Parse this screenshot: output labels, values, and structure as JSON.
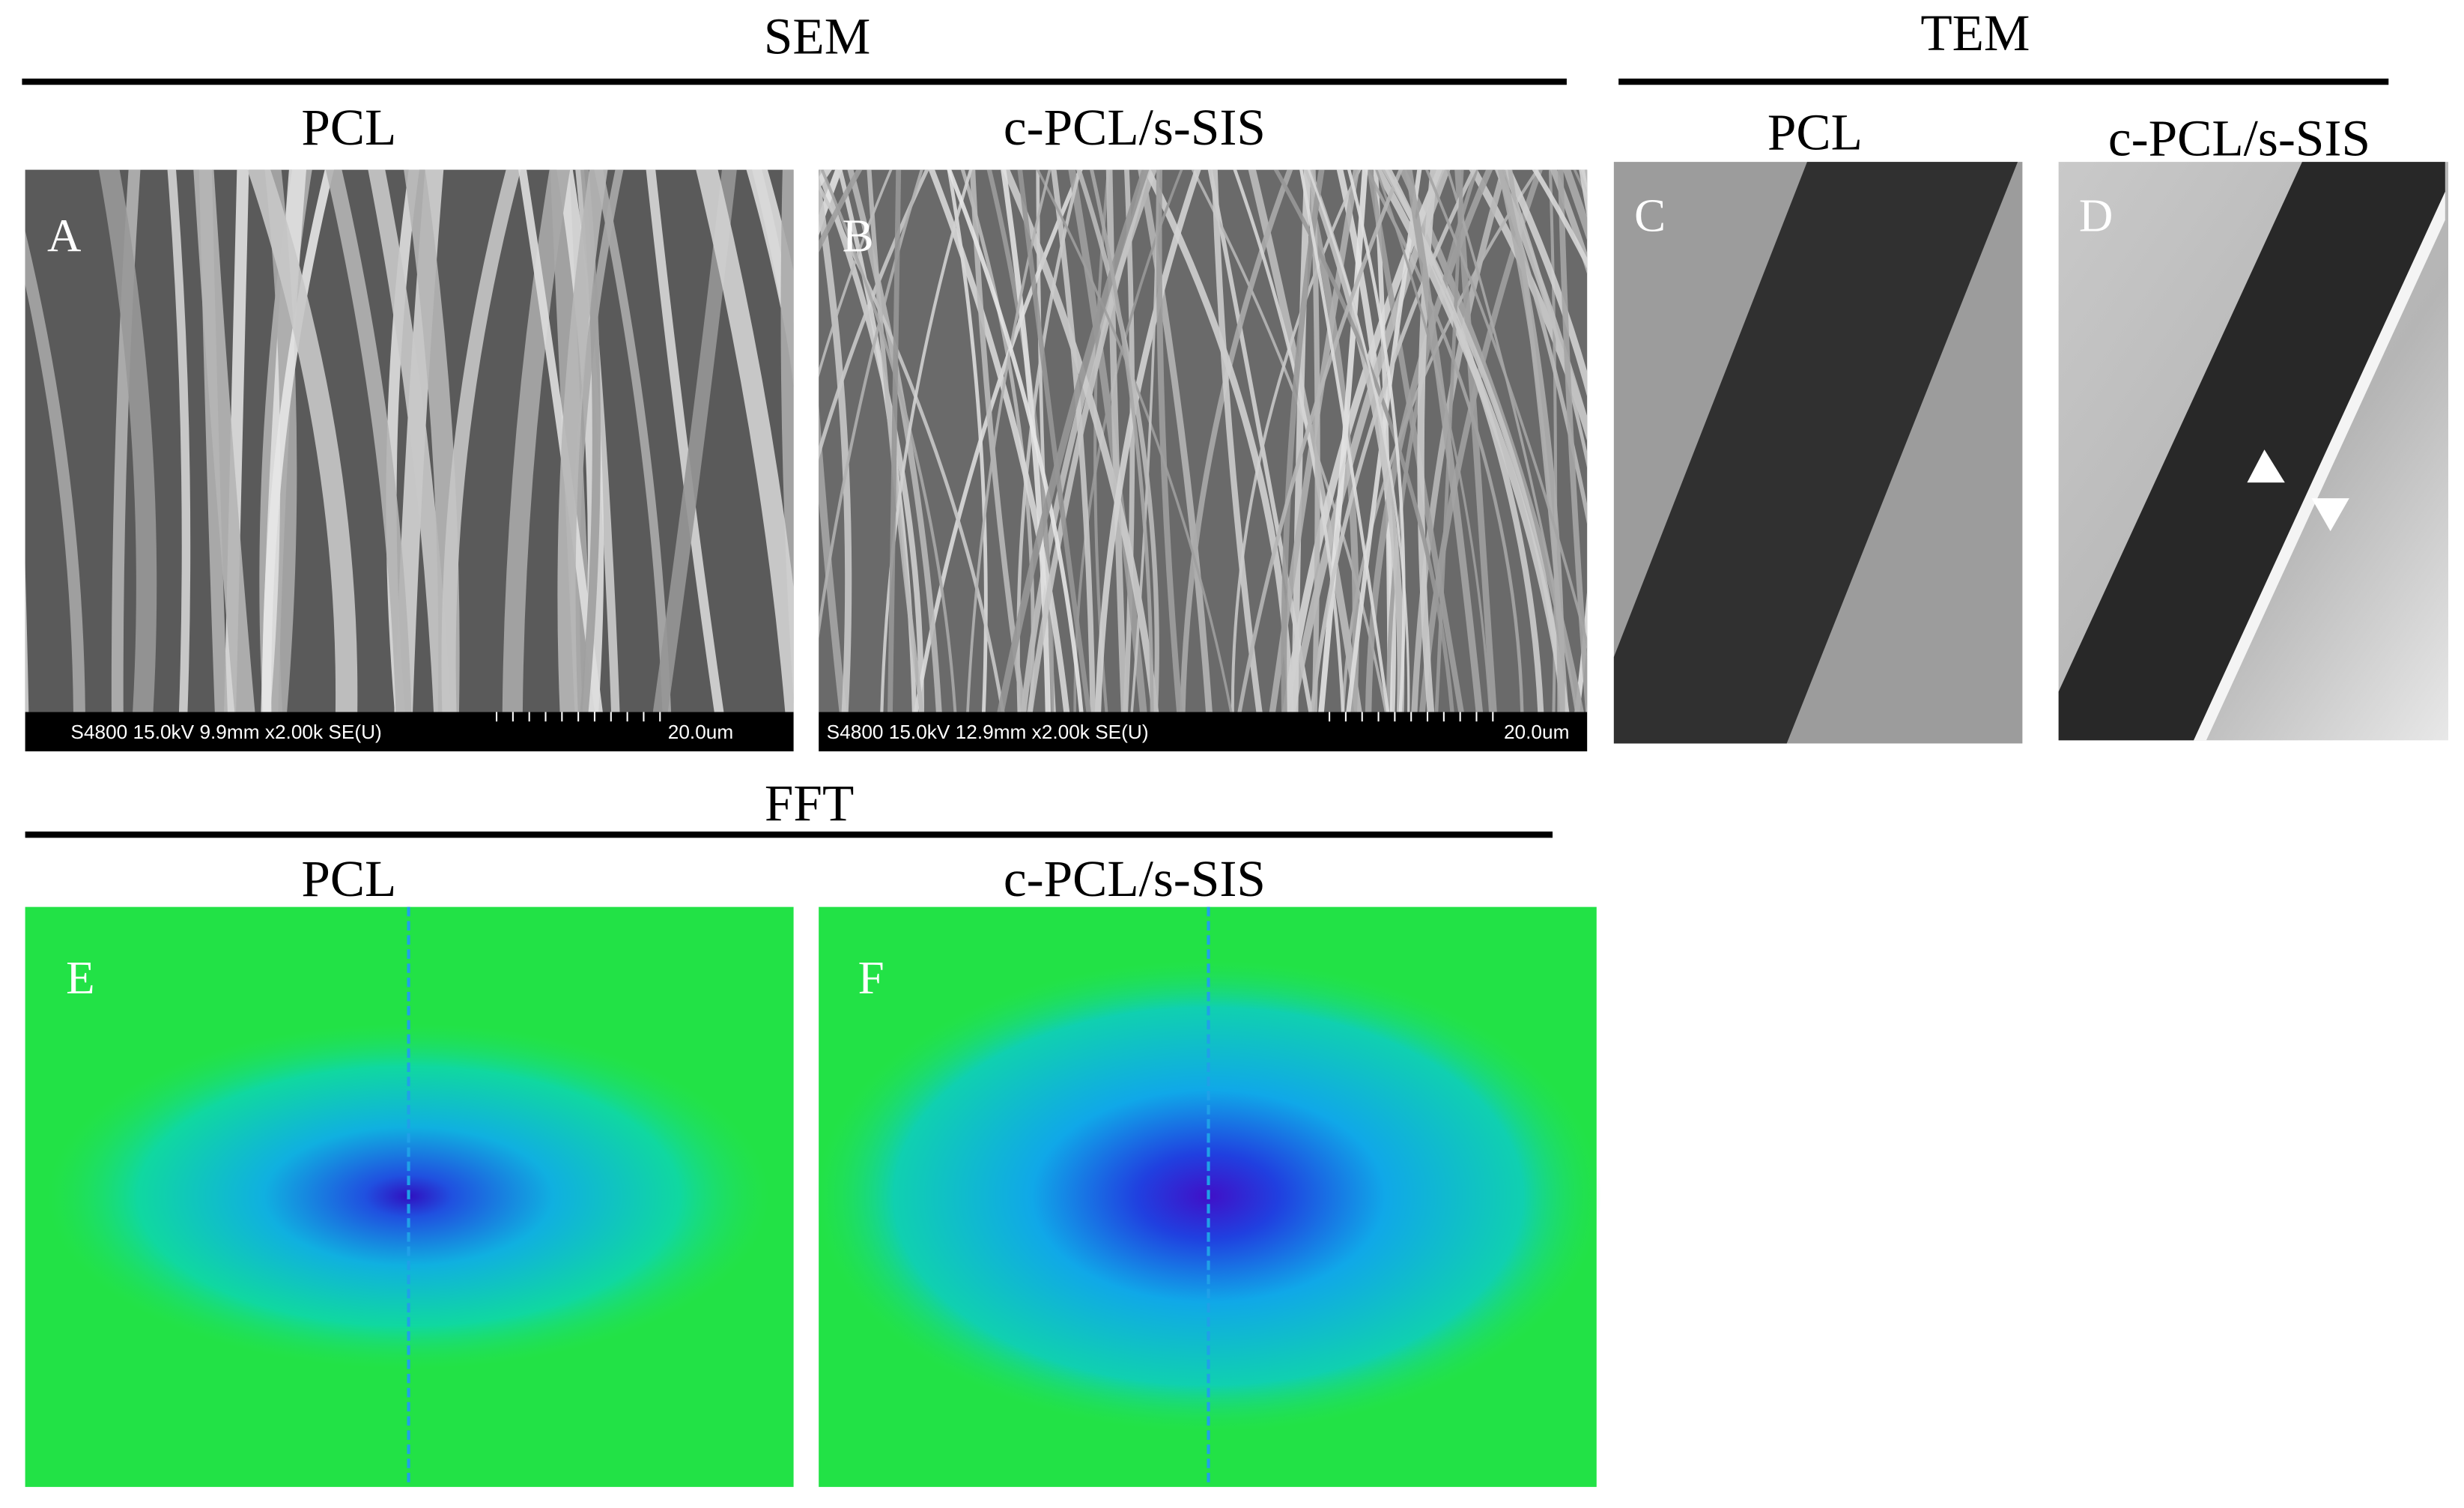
{
  "sem": {
    "title": "SEM",
    "panels": [
      {
        "letter": "A",
        "title": "PCL",
        "info": "S4800 15.0kV 9.9mm x2.00k SE(U)",
        "scale": "20.0um"
      },
      {
        "letter": "B",
        "title": "c-PCL/s-SIS",
        "info": "S4800 15.0kV 12.9mm x2.00k SE(U)",
        "scale": "20.0um"
      }
    ]
  },
  "tem": {
    "title": "TEM",
    "panels": [
      {
        "letter": "C",
        "title": "PCL"
      },
      {
        "letter": "D",
        "title": "c-PCL/s-SIS"
      }
    ]
  },
  "fft": {
    "title": "FFT",
    "panels": [
      {
        "letter": "E",
        "title": "PCL"
      },
      {
        "letter": "F",
        "title": "c-PCL/s-SIS"
      }
    ]
  }
}
